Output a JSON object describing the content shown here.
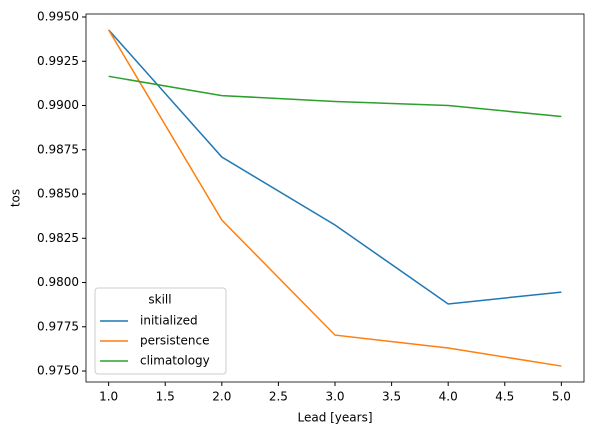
{
  "chart_data": {
    "type": "line",
    "x_label": "Lead [years]",
    "y_label": "tos",
    "x": [
      1.0,
      2.0,
      3.0,
      4.0,
      5.0
    ],
    "series": [
      {
        "name": "initialized",
        "color": "#1f77b4",
        "values": [
          0.99427,
          0.98709,
          0.98325,
          0.97879,
          0.97946
        ]
      },
      {
        "name": "persistence",
        "color": "#ff7f0e",
        "values": [
          0.99427,
          0.98353,
          0.97703,
          0.9763,
          0.97528
        ]
      },
      {
        "name": "climatology",
        "color": "#2ca02c",
        "values": [
          0.99165,
          0.99056,
          0.99023,
          0.99,
          0.98938
        ]
      }
    ],
    "legend_title": "skill",
    "legend_position": "lower left",
    "xlim": [
      0.8,
      5.2
    ],
    "xticks": [
      {
        "value": 1.0,
        "label": "1.0"
      },
      {
        "value": 1.5,
        "label": "1.5"
      },
      {
        "value": 2.0,
        "label": "2.0"
      },
      {
        "value": 2.5,
        "label": "2.5"
      },
      {
        "value": 3.0,
        "label": "3.0"
      },
      {
        "value": 3.5,
        "label": "3.5"
      },
      {
        "value": 4.0,
        "label": "4.0"
      },
      {
        "value": 4.5,
        "label": "4.5"
      },
      {
        "value": 5.0,
        "label": "5.0"
      }
    ],
    "ylim": [
      0.97438,
      0.99517
    ],
    "yticks": [
      {
        "value": 0.975,
        "label": "0.9750"
      },
      {
        "value": 0.9775,
        "label": "0.9775"
      },
      {
        "value": 0.98,
        "label": "0.9800"
      },
      {
        "value": 0.9825,
        "label": "0.9825"
      },
      {
        "value": 0.985,
        "label": "0.9850"
      },
      {
        "value": 0.9875,
        "label": "0.9875"
      },
      {
        "value": 0.99,
        "label": "0.9900"
      },
      {
        "value": 0.9925,
        "label": "0.9925"
      },
      {
        "value": 0.995,
        "label": "0.9950"
      }
    ],
    "grid": false
  }
}
